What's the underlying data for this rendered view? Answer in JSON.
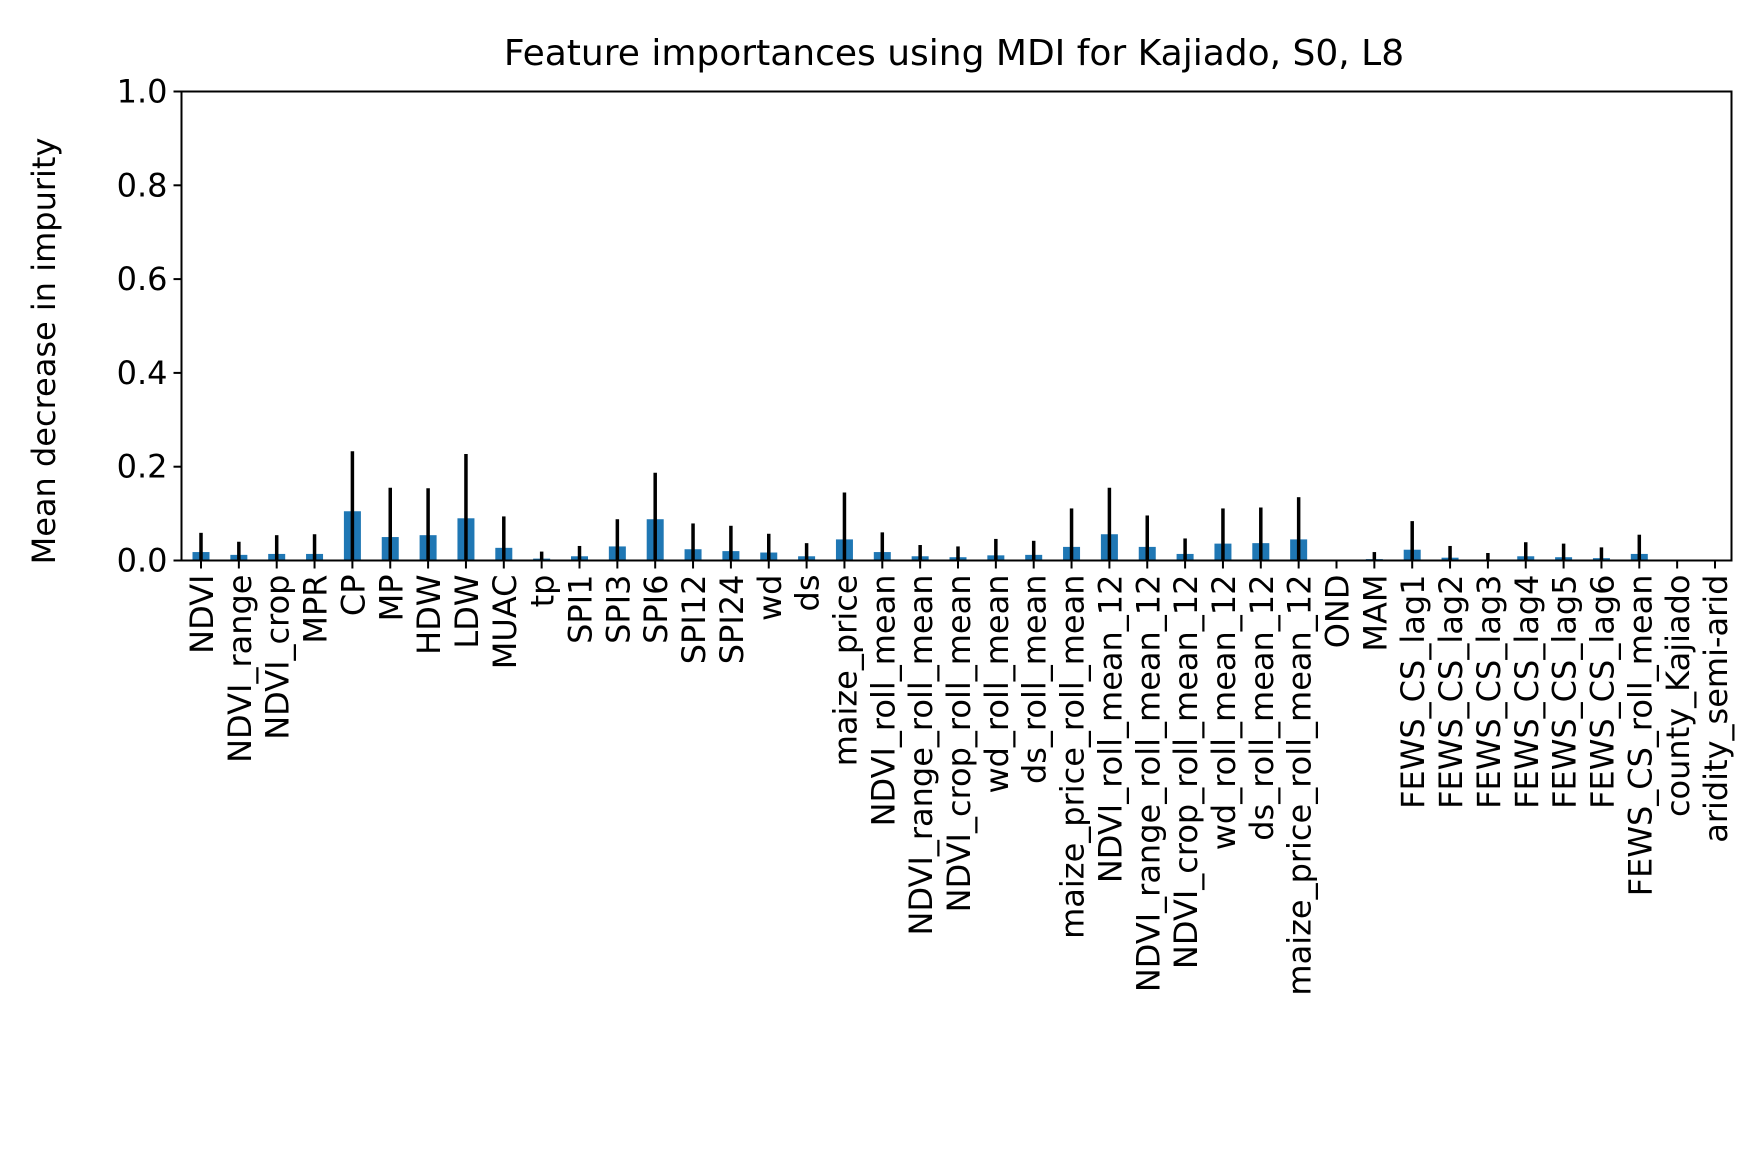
{
  "chart_data": {
    "type": "bar",
    "title": "Feature importances using MDI for Kajiado, S0, L8",
    "xlabel": "",
    "ylabel": "Mean decrease in impurity",
    "ylim": [
      0,
      1.0
    ],
    "yticks": [
      "0.0",
      "0.2",
      "0.4",
      "0.6",
      "0.8",
      "1.0"
    ],
    "grid": false,
    "legend": "none",
    "bar_color": "#1f77b4",
    "error_color": "#000000",
    "categories": [
      "NDVI",
      "NDVI_range",
      "NDVI_crop",
      "MPR",
      "CP",
      "MP",
      "HDW",
      "LDW",
      "MUAC",
      "tp",
      "SPI1",
      "SPI3",
      "SPI6",
      "SPI12",
      "SPI24",
      "wd",
      "ds",
      "maize_price",
      "NDVI_roll_mean",
      "NDVI_range_roll_mean",
      "NDVI_crop_roll_mean",
      "wd_roll_mean",
      "ds_roll_mean",
      "maize_price_roll_mean",
      "NDVI_roll_mean_12",
      "NDVI_range_roll_mean_12",
      "NDVI_crop_roll_mean_12",
      "wd_roll_mean_12",
      "ds_roll_mean_12",
      "maize_price_roll_mean_12",
      "OND",
      "MAM",
      "FEWS_CS_lag1",
      "FEWS_CS_lag2",
      "FEWS_CS_lag3",
      "FEWS_CS_lag4",
      "FEWS_CS_lag5",
      "FEWS_CS_lag6",
      "FEWS_CS_roll_mean",
      "county_Kajiado",
      "aridity_semi-arid"
    ],
    "values": [
      0.018,
      0.012,
      0.014,
      0.014,
      0.105,
      0.05,
      0.054,
      0.09,
      0.027,
      0.004,
      0.009,
      0.03,
      0.088,
      0.024,
      0.02,
      0.017,
      0.009,
      0.045,
      0.018,
      0.009,
      0.007,
      0.011,
      0.012,
      0.029,
      0.056,
      0.029,
      0.014,
      0.036,
      0.037,
      0.045,
      0.0,
      0.003,
      0.023,
      0.006,
      0.002,
      0.009,
      0.007,
      0.005,
      0.014,
      0.0,
      0.0
    ],
    "errors": [
      0.041,
      0.028,
      0.04,
      0.042,
      0.128,
      0.105,
      0.1,
      0.137,
      0.067,
      0.015,
      0.022,
      0.058,
      0.099,
      0.055,
      0.054,
      0.04,
      0.028,
      0.1,
      0.042,
      0.024,
      0.023,
      0.035,
      0.03,
      0.082,
      0.099,
      0.067,
      0.033,
      0.075,
      0.076,
      0.09,
      0.0,
      0.015,
      0.061,
      0.025,
      0.014,
      0.03,
      0.029,
      0.023,
      0.041,
      0.0,
      0.0
    ]
  }
}
